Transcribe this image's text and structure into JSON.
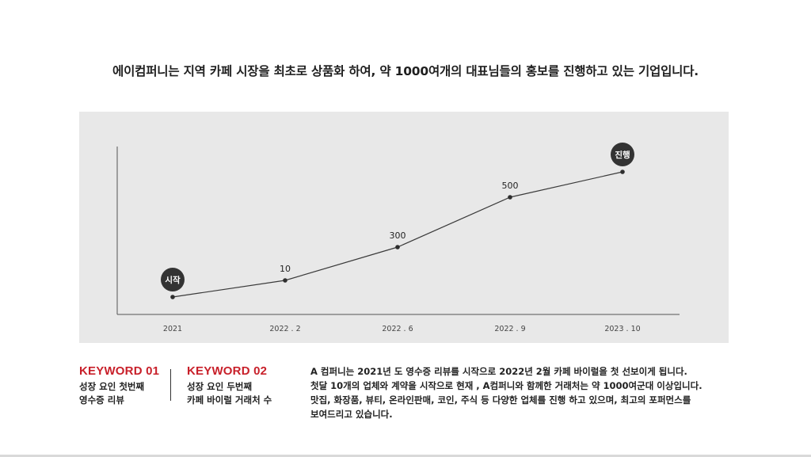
{
  "headline": "에이컴퍼니는 지역 카페 시장을 최초로 상품화 하여, 약 1000여개의 대표님들의 홍보를 진행하고 있는 기업입니다.",
  "chart_data": {
    "type": "line",
    "categories": [
      "2021",
      "2022 . 2",
      "2022 . 6",
      "2022 . 9",
      "2023 . 10"
    ],
    "series": [
      {
        "values": [
          0,
          10,
          300,
          500,
          1000
        ]
      }
    ],
    "data_labels": [
      "시작",
      "10",
      "300",
      "500",
      "진행"
    ],
    "badge_points": [
      0,
      4
    ],
    "colors": {
      "line": "#3a3a3a",
      "point": "#2e2e2e",
      "badge": "#333333",
      "badge_text": "#ffffff",
      "panel": "#e8e8e8"
    },
    "grid": false
  },
  "keywords": [
    {
      "title": "KEYWORD 01",
      "lines": [
        "성장 요인 첫번째",
        "영수증 리뷰"
      ]
    },
    {
      "title": "KEYWORD 02",
      "lines": [
        "성장 요인 두번째",
        "카페 바이럴 거래처 수"
      ]
    }
  ],
  "description": {
    "lines": [
      "A 컴퍼니는 2021년 도 영수증 리뷰를 시작으로 2022년 2월 카페 바이럴을 첫 선보이게 됩니다.",
      "첫달  10개의 업체와 계약을 시작으로 현재 , A컴퍼니와 함께한 거래처는 약 1000여군대 이상입니다.",
      "맛집, 화장품, 뷰티, 온라인판매, 코인, 주식 등 다양한 업체를 진행 하고 있으며, 최고의 포퍼먼스를",
      "보여드리고 있습니다."
    ]
  }
}
